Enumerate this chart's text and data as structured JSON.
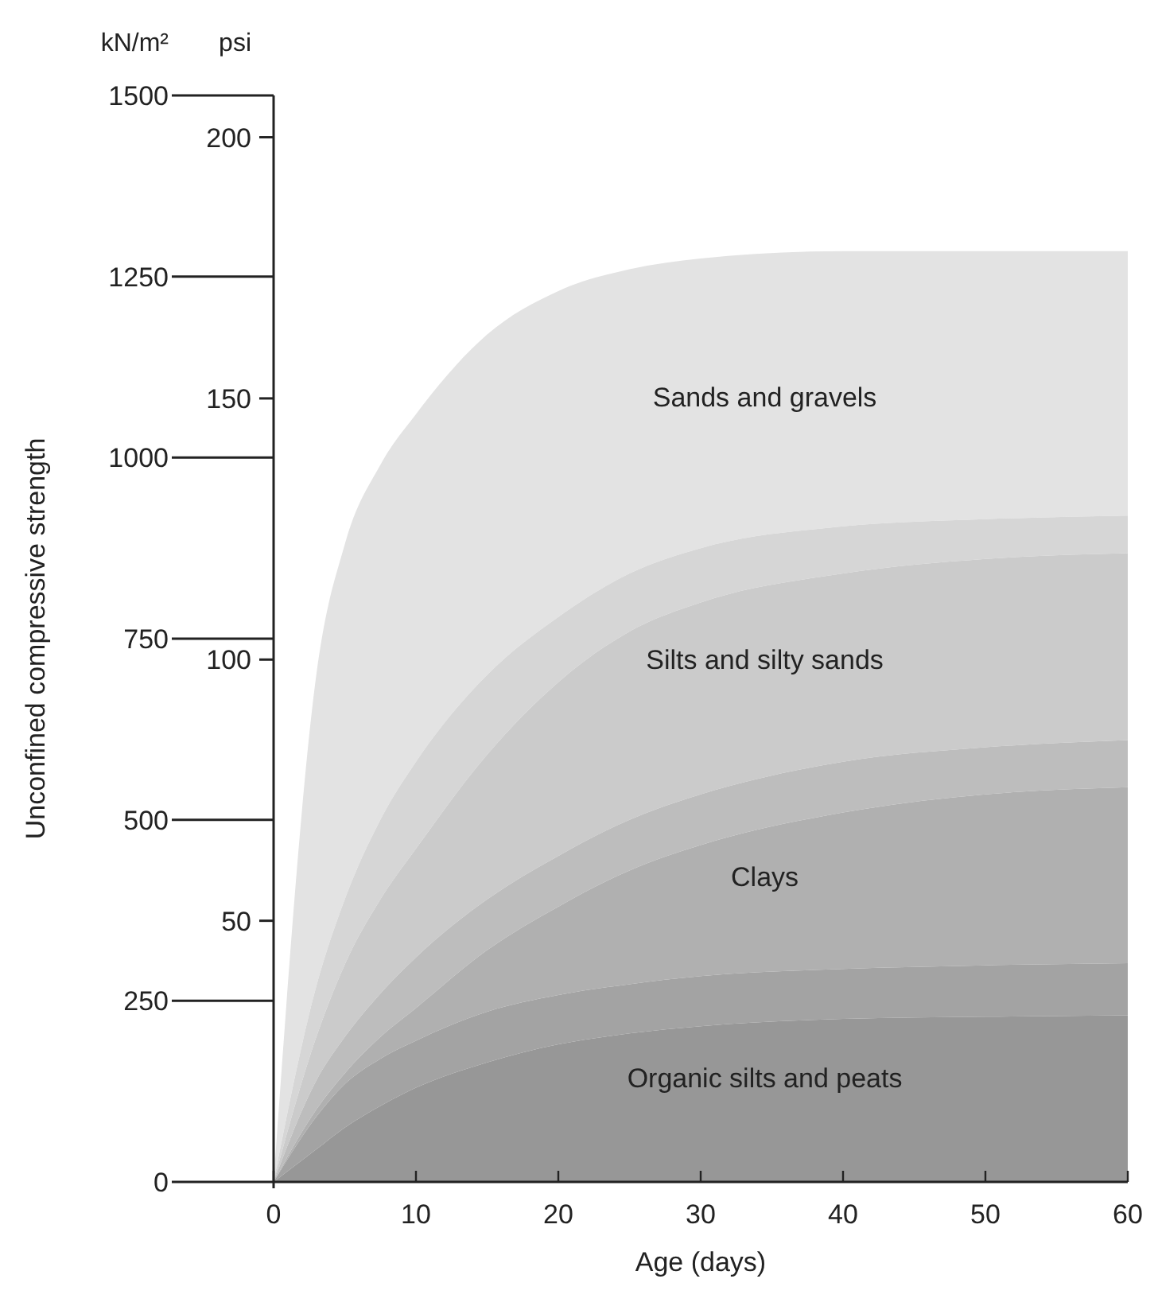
{
  "chart_data": {
    "type": "area",
    "xlabel": "Age (days)",
    "ylabel": "Unconfined compressive strength",
    "y2label": "psi",
    "annotations": [
      "kN/m²"
    ],
    "x": [
      0,
      3,
      5,
      7.5,
      10,
      15,
      20,
      25,
      30,
      40,
      50,
      60
    ],
    "series": [
      {
        "name": "Sands and gravels",
        "color": "#e3e3e3",
        "values": [
          0,
          700,
          880,
          990,
          1060,
          1170,
          1230,
          1260,
          1275,
          1285,
          1285,
          1285
        ]
      },
      {
        "name": "Silts and silty sands",
        "color": "#d6d6d6",
        "values": [
          0,
          270,
          390,
          500,
          580,
          700,
          780,
          840,
          875,
          905,
          915,
          920
        ]
      },
      {
        "color": "#cbcbcb",
        "values": [
          0,
          200,
          300,
          390,
          460,
          590,
          690,
          760,
          800,
          840,
          860,
          868
        ]
      },
      {
        "name": "Clays",
        "color": "#bdbdbd",
        "values": [
          0,
          140,
          200,
          260,
          310,
          390,
          450,
          500,
          535,
          580,
          600,
          610
        ]
      },
      {
        "color": "#b0b0b0",
        "values": [
          0,
          100,
          150,
          200,
          240,
          320,
          380,
          430,
          465,
          510,
          535,
          545
        ]
      },
      {
        "name": "Organic silts and peats",
        "color": "#a3a3a3",
        "values": [
          0,
          90,
          135,
          170,
          195,
          235,
          258,
          273,
          284,
          294,
          299,
          302
        ]
      },
      {
        "color": "#979797",
        "values": [
          0,
          45,
          75,
          105,
          130,
          165,
          190,
          205,
          215,
          225,
          228,
          230
        ]
      }
    ],
    "xlim": [
      0,
      60
    ],
    "xticks": [
      0,
      10,
      20,
      30,
      40,
      50,
      60
    ],
    "ylim": [
      0,
      1500
    ],
    "yticks": [
      0,
      250,
      500,
      750,
      1000,
      1250,
      1500
    ],
    "y2lim": [
      0,
      208
    ],
    "y2ticks": [
      50,
      100,
      150,
      200
    ],
    "grid": false
  }
}
